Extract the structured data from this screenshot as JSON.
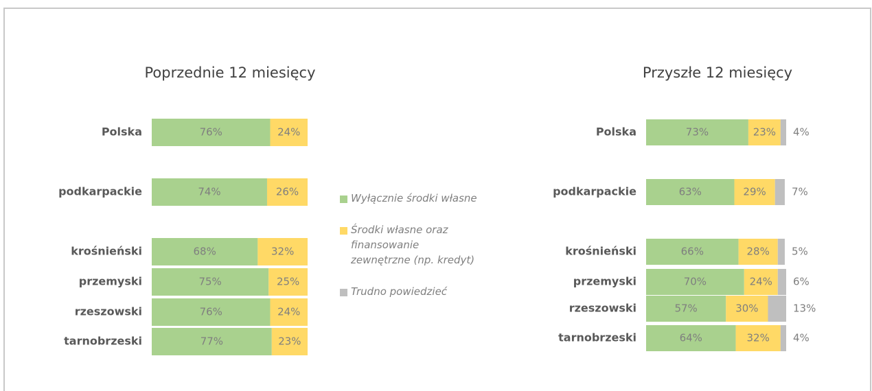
{
  "chart_data": [
    {
      "type": "stacked-bar-horizontal",
      "title": "Poprzednie 12 miesięcy",
      "categories": [
        "Polska",
        "podkarpackie",
        "krośnieński",
        "przemyski",
        "rzeszowski",
        "tarnobrzeski"
      ],
      "xlim": [
        0,
        100
      ],
      "series": [
        {
          "color": "#a9d18e",
          "values": [
            76,
            74,
            68,
            75,
            76,
            77
          ],
          "value_labels": [
            "76%",
            "74%",
            "68%",
            "75%",
            "76%",
            "77%"
          ]
        },
        {
          "color": "#ffd966",
          "values": [
            24,
            26,
            32,
            25,
            24,
            23
          ],
          "value_labels": [
            "24%",
            "26%",
            "32%",
            "25%",
            "24%",
            "23%"
          ]
        }
      ]
    },
    {
      "type": "stacked-bar-horizontal",
      "title": "Przyszłe 12 miesięcy",
      "categories": [
        "Polska",
        "podkarpackie",
        "krośnieński",
        "przemyski",
        "rzeszowski",
        "tarnobrzeski"
      ],
      "xlim": [
        0,
        100
      ],
      "series": [
        {
          "name": "Wyłącznie środki własne",
          "color": "#a9d18e",
          "values": [
            73,
            63,
            66,
            70,
            57,
            64
          ],
          "value_labels": [
            "73%",
            "63%",
            "66%",
            "70%",
            "57%",
            "64%"
          ]
        },
        {
          "name": "Środki własne oraz finansowanie zewnętrzne (np. kredyt)",
          "color": "#ffd966",
          "values": [
            23,
            29,
            28,
            24,
            30,
            32
          ],
          "value_labels": [
            "23%",
            "29%",
            "28%",
            "24%",
            "30%",
            "32%"
          ]
        },
        {
          "name": "Trudno powiedzieć",
          "color": "#bfbfbf",
          "values": [
            4,
            7,
            5,
            6,
            13,
            4
          ],
          "value_labels": [
            "4%",
            "7%",
            "5%",
            "6%",
            "13%",
            "4%"
          ]
        }
      ]
    }
  ]
}
